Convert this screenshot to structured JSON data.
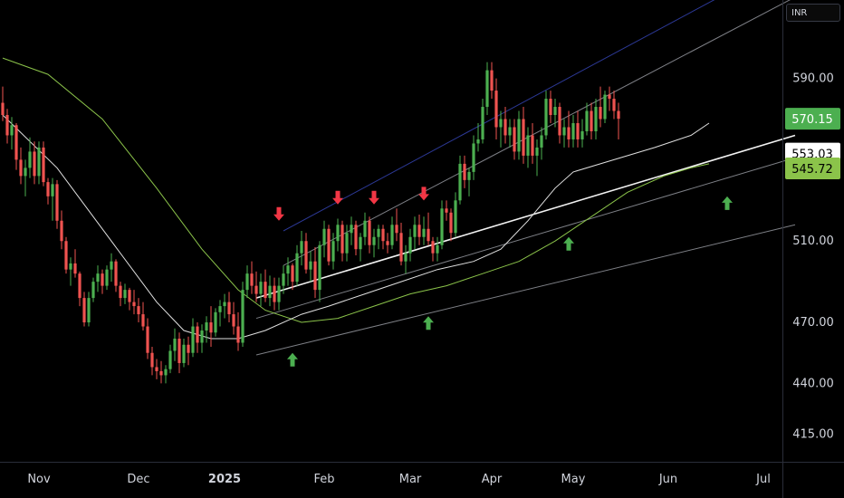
{
  "toolbar": {
    "currency": "INR"
  },
  "chart_data": {
    "type": "candlestick",
    "title": "",
    "currency": "INR",
    "ylim": [
      405,
      625
    ],
    "yticks": [
      415,
      440,
      470,
      510,
      590
    ],
    "ytick_labels": [
      "415.00",
      "440.00",
      "470.00",
      "510.00",
      "590.00"
    ],
    "xticks": [
      {
        "label": "Nov",
        "index": 8,
        "bold": false
      },
      {
        "label": "Dec",
        "index": 30,
        "bold": false
      },
      {
        "label": "2025",
        "index": 49,
        "bold": true
      },
      {
        "label": "Feb",
        "index": 71,
        "bold": false
      },
      {
        "label": "Mar",
        "index": 90,
        "bold": false
      },
      {
        "label": "Apr",
        "index": 108,
        "bold": false
      },
      {
        "label": "May",
        "index": 126,
        "bold": false
      },
      {
        "label": "Jun",
        "index": 147,
        "bold": false
      },
      {
        "label": "Jul",
        "index": 168,
        "bold": false
      }
    ],
    "price_labels": [
      {
        "label": "570.15",
        "value": 570.15,
        "bg": "#4caf50",
        "fg": "#ffffff"
      },
      {
        "label": "553.03",
        "value": 553.03,
        "bg": "#ffffff",
        "fg": "#000000"
      },
      {
        "label": "545.72",
        "value": 545.72,
        "bg": "#8bc34a",
        "fg": "#000000"
      }
    ],
    "colors": {
      "up": "#4caf50",
      "down": "#ef5350",
      "background": "#000000",
      "ema_fast": "#e0e0e0",
      "ema_slow": "#8bc34a",
      "channel_top": "#3f51d5",
      "channel": "#b2b5be",
      "arrow_up": "#4caf50",
      "arrow_down": "#f23645"
    },
    "ohlc": [
      [
        578,
        586,
        569,
        572
      ],
      [
        572,
        575,
        558,
        562
      ],
      [
        562,
        571,
        555,
        567
      ],
      [
        567,
        568,
        545,
        550
      ],
      [
        550,
        556,
        538,
        542
      ],
      [
        542,
        550,
        532,
        546
      ],
      [
        546,
        561,
        541,
        554
      ],
      [
        554,
        559,
        538,
        542
      ],
      [
        542,
        559,
        538,
        556
      ],
      [
        556,
        559,
        537,
        539
      ],
      [
        539,
        541,
        528,
        532
      ],
      [
        532,
        541,
        520,
        538
      ],
      [
        538,
        540,
        516,
        520
      ],
      [
        520,
        525,
        506,
        510
      ],
      [
        510,
        512,
        494,
        496
      ],
      [
        496,
        502,
        488,
        499
      ],
      [
        499,
        506,
        492,
        494
      ],
      [
        494,
        495,
        478,
        482
      ],
      [
        482,
        485,
        468,
        470
      ],
      [
        470,
        485,
        468,
        482
      ],
      [
        482,
        492,
        480,
        490
      ],
      [
        490,
        498,
        485,
        494
      ],
      [
        494,
        496,
        484,
        488
      ],
      [
        488,
        498,
        486,
        496
      ],
      [
        496,
        504,
        490,
        500
      ],
      [
        500,
        501,
        485,
        488
      ],
      [
        488,
        490,
        478,
        482
      ],
      [
        482,
        489,
        479,
        486
      ],
      [
        486,
        487,
        476,
        480
      ],
      [
        480,
        486,
        474,
        478
      ],
      [
        478,
        482,
        470,
        474
      ],
      [
        474,
        480,
        466,
        468
      ],
      [
        468,
        472,
        452,
        455
      ],
      [
        455,
        458,
        444,
        448
      ],
      [
        448,
        452,
        442,
        446
      ],
      [
        446,
        451,
        440,
        444
      ],
      [
        444,
        449,
        440,
        447
      ],
      [
        447,
        459,
        445,
        456
      ],
      [
        456,
        467,
        451,
        462
      ],
      [
        462,
        465,
        445,
        450
      ],
      [
        450,
        462,
        448,
        459
      ],
      [
        459,
        463,
        449,
        455
      ],
      [
        455,
        472,
        453,
        468
      ],
      [
        468,
        470,
        455,
        460
      ],
      [
        460,
        469,
        455,
        466
      ],
      [
        466,
        473,
        460,
        470
      ],
      [
        470,
        478,
        458,
        465
      ],
      [
        465,
        477,
        463,
        475
      ],
      [
        475,
        481,
        468,
        478
      ],
      [
        478,
        484,
        472,
        480
      ],
      [
        480,
        485,
        470,
        474
      ],
      [
        474,
        480,
        464,
        468
      ],
      [
        468,
        475,
        456,
        460
      ],
      [
        460,
        490,
        458,
        486
      ],
      [
        486,
        498,
        482,
        494
      ],
      [
        494,
        500,
        484,
        488
      ],
      [
        488,
        495,
        480,
        484
      ],
      [
        484,
        494,
        478,
        490
      ],
      [
        490,
        496,
        480,
        482
      ],
      [
        482,
        493,
        478,
        488
      ],
      [
        488,
        492,
        476,
        480
      ],
      [
        480,
        492,
        476,
        488
      ],
      [
        488,
        498,
        484,
        494
      ],
      [
        494,
        502,
        488,
        498
      ],
      [
        498,
        499,
        486,
        490
      ],
      [
        490,
        508,
        488,
        504
      ],
      [
        504,
        515,
        498,
        510
      ],
      [
        510,
        514,
        494,
        496
      ],
      [
        496,
        505,
        490,
        500
      ],
      [
        500,
        507,
        482,
        486
      ],
      [
        486,
        510,
        480,
        508
      ],
      [
        508,
        520,
        502,
        516
      ],
      [
        516,
        518,
        498,
        500
      ],
      [
        500,
        514,
        496,
        510
      ],
      [
        510,
        521,
        505,
        518
      ],
      [
        518,
        520,
        500,
        504
      ],
      [
        504,
        518,
        500,
        514
      ],
      [
        514,
        522,
        508,
        518
      ],
      [
        518,
        520,
        503,
        506
      ],
      [
        506,
        514,
        500,
        512
      ],
      [
        512,
        524,
        508,
        520
      ],
      [
        520,
        522,
        504,
        508
      ],
      [
        508,
        516,
        502,
        512
      ],
      [
        512,
        518,
        506,
        516
      ],
      [
        516,
        518,
        506,
        510
      ],
      [
        510,
        514,
        504,
        508
      ],
      [
        508,
        522,
        506,
        518
      ],
      [
        518,
        526,
        510,
        514
      ],
      [
        514,
        519,
        498,
        500
      ],
      [
        500,
        508,
        494,
        504
      ],
      [
        504,
        516,
        500,
        512
      ],
      [
        512,
        522,
        506,
        518
      ],
      [
        518,
        523,
        508,
        512
      ],
      [
        512,
        522,
        508,
        516
      ],
      [
        516,
        524,
        508,
        510
      ],
      [
        510,
        512,
        500,
        504
      ],
      [
        504,
        512,
        500,
        508
      ],
      [
        508,
        530,
        506,
        526
      ],
      [
        526,
        530,
        520,
        524
      ],
      [
        524,
        526,
        510,
        514
      ],
      [
        514,
        534,
        512,
        530
      ],
      [
        530,
        552,
        528,
        548
      ],
      [
        548,
        552,
        536,
        540
      ],
      [
        540,
        546,
        532,
        544
      ],
      [
        544,
        562,
        540,
        558
      ],
      [
        558,
        568,
        554,
        560
      ],
      [
        560,
        580,
        558,
        576
      ],
      [
        576,
        598,
        572,
        594
      ],
      [
        594,
        598,
        580,
        584
      ],
      [
        584,
        590,
        560,
        566
      ],
      [
        566,
        574,
        556,
        570
      ],
      [
        570,
        576,
        558,
        562
      ],
      [
        562,
        570,
        556,
        566
      ],
      [
        566,
        570,
        550,
        554
      ],
      [
        554,
        574,
        550,
        570
      ],
      [
        570,
        576,
        548,
        552
      ],
      [
        552,
        566,
        546,
        562
      ],
      [
        562,
        568,
        548,
        552
      ],
      [
        552,
        560,
        542,
        556
      ],
      [
        556,
        566,
        550,
        562
      ],
      [
        562,
        584,
        560,
        580
      ],
      [
        580,
        584,
        568,
        572
      ],
      [
        572,
        580,
        566,
        576
      ],
      [
        576,
        578,
        558,
        562
      ],
      [
        562,
        570,
        556,
        566
      ],
      [
        566,
        574,
        556,
        560
      ],
      [
        560,
        572,
        556,
        568
      ],
      [
        568,
        574,
        556,
        560
      ],
      [
        560,
        570,
        556,
        564
      ],
      [
        564,
        578,
        562,
        574
      ],
      [
        574,
        578,
        560,
        564
      ],
      [
        564,
        580,
        560,
        576
      ],
      [
        576,
        586,
        566,
        570
      ],
      [
        570,
        584,
        568,
        582
      ],
      [
        582,
        586,
        574,
        580
      ],
      [
        580,
        584,
        570,
        574
      ],
      [
        574,
        578,
        560,
        570.15
      ]
    ],
    "ema_fast_sample": [
      [
        0,
        572
      ],
      [
        12,
        546
      ],
      [
        22,
        516
      ],
      [
        34,
        480
      ],
      [
        40,
        466
      ],
      [
        46,
        462
      ],
      [
        52,
        462
      ],
      [
        58,
        466
      ],
      [
        66,
        474
      ],
      [
        72,
        478
      ],
      [
        80,
        484
      ],
      [
        88,
        490
      ],
      [
        96,
        496
      ],
      [
        104,
        500
      ],
      [
        110,
        506
      ],
      [
        116,
        520
      ],
      [
        122,
        536
      ],
      [
        126,
        544
      ],
      [
        132,
        548
      ],
      [
        138,
        552
      ],
      [
        144,
        556
      ],
      [
        152,
        562
      ],
      [
        156,
        568
      ]
    ],
    "ema_slow_sample": [
      [
        0,
        600
      ],
      [
        10,
        592
      ],
      [
        22,
        570
      ],
      [
        34,
        536
      ],
      [
        44,
        506
      ],
      [
        52,
        486
      ],
      [
        58,
        476
      ],
      [
        66,
        470
      ],
      [
        74,
        472
      ],
      [
        82,
        478
      ],
      [
        90,
        484
      ],
      [
        98,
        488
      ],
      [
        106,
        494
      ],
      [
        114,
        500
      ],
      [
        122,
        510
      ],
      [
        130,
        522
      ],
      [
        138,
        534
      ],
      [
        146,
        542
      ],
      [
        152,
        546
      ],
      [
        156,
        548
      ]
    ],
    "channel_lines": [
      {
        "from": [
          62,
          515
        ],
        "to": [
          175,
          650
        ],
        "role": "upper-blue"
      },
      {
        "from": [
          62,
          498
        ],
        "to": [
          175,
          630
        ],
        "role": "upper-gray"
      },
      {
        "from": [
          56,
          482
        ],
        "to": [
          175,
          562
        ],
        "role": "mid-white"
      },
      {
        "from": [
          56,
          472
        ],
        "to": [
          175,
          551
        ],
        "role": "mid-gray"
      },
      {
        "from": [
          56,
          454
        ],
        "to": [
          175,
          518
        ],
        "role": "lower-gray"
      }
    ],
    "up_arrows": [
      {
        "index": 64,
        "value": 455
      },
      {
        "index": 94,
        "value": 473
      },
      {
        "index": 125,
        "value": 512
      },
      {
        "index": 160,
        "value": 532
      }
    ],
    "down_arrows": [
      {
        "index": 61,
        "value": 520
      },
      {
        "index": 74,
        "value": 528
      },
      {
        "index": 82,
        "value": 528
      },
      {
        "index": 93,
        "value": 530
      }
    ]
  }
}
